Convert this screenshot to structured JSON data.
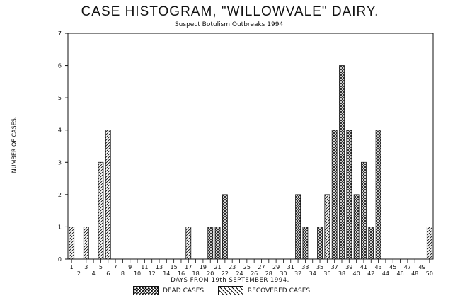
{
  "chart_data": {
    "type": "bar",
    "title": "CASE HISTOGRAM, \"WILLOWVALE\" DAIRY.",
    "subtitle": "Suspect Botulism Outbreaks 1994.",
    "xlabel": "DAYS FROM 19th SEPTEMBER 1994.",
    "ylabel": "NUMBER OF CASES.",
    "ylim": [
      0,
      7
    ],
    "yticks": [
      0,
      1,
      2,
      3,
      4,
      5,
      6,
      7
    ],
    "categories": [
      1,
      2,
      3,
      4,
      5,
      6,
      7,
      8,
      9,
      10,
      11,
      12,
      13,
      14,
      15,
      16,
      17,
      18,
      19,
      20,
      21,
      22,
      23,
      24,
      25,
      26,
      27,
      28,
      29,
      30,
      31,
      32,
      33,
      34,
      35,
      36,
      37,
      38,
      39,
      40,
      41,
      42,
      43,
      44,
      45,
      46,
      47,
      48,
      49,
      50
    ],
    "series": [
      {
        "name": "DEAD CASES.",
        "values": [
          0,
          0,
          0,
          0,
          0,
          0,
          0,
          0,
          0,
          0,
          0,
          0,
          0,
          0,
          0,
          0,
          0,
          0,
          0,
          1,
          1,
          2,
          0,
          0,
          0,
          0,
          0,
          0,
          0,
          0,
          0,
          2,
          1,
          0,
          1,
          1,
          4,
          6,
          4,
          2,
          3,
          1,
          4,
          0,
          0,
          0,
          0,
          0,
          0,
          0
        ]
      },
      {
        "name": "RECOVERED CASES.",
        "values": [
          1,
          0,
          1,
          0,
          3,
          4,
          0,
          0,
          0,
          0,
          0,
          0,
          0,
          0,
          0,
          0,
          1,
          0,
          0,
          0,
          0,
          0,
          0,
          0,
          0,
          0,
          0,
          0,
          0,
          0,
          0,
          0,
          0,
          0,
          0,
          2,
          0,
          0,
          0,
          0,
          0,
          0,
          0,
          0,
          0,
          0,
          0,
          0,
          0,
          1
        ]
      }
    ],
    "grid": false,
    "legend": "bottom",
    "colors": {
      "ink": "#111111",
      "background": "#ffffff"
    }
  }
}
